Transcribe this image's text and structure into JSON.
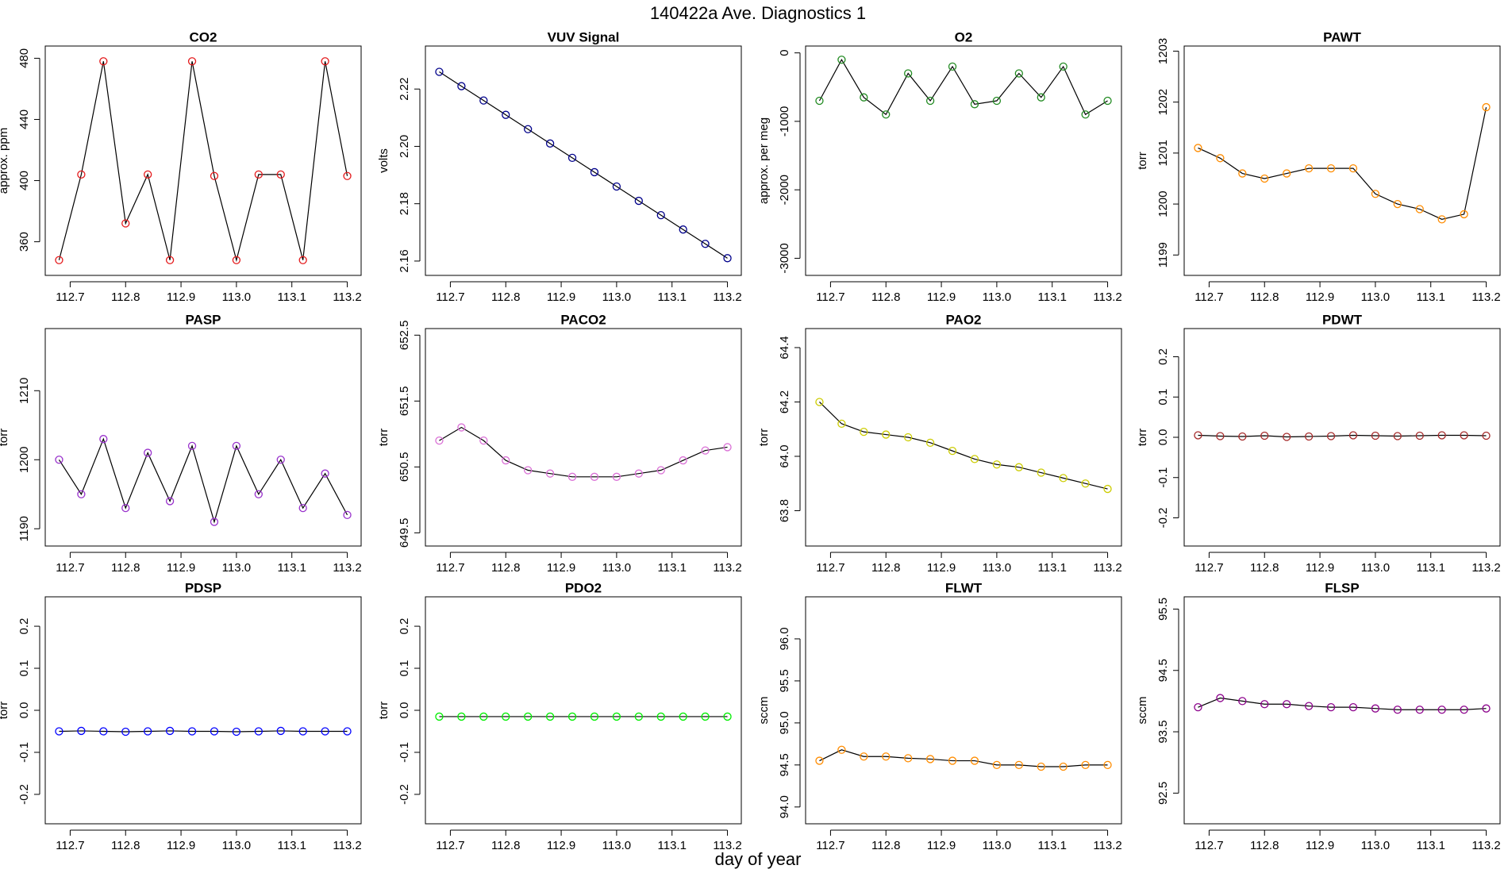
{
  "title": "140422a   Ave. Diagnostics 1",
  "xlabel": "day of year",
  "chart_data": [
    {
      "type": "scatter",
      "title": "CO2",
      "ylabel": "approx. ppm",
      "color": "#e41a1c",
      "line_color": "#000000",
      "x": [
        112.68,
        112.72,
        112.76,
        112.8,
        112.84,
        112.88,
        112.92,
        112.96,
        113.0,
        113.04,
        113.08,
        113.12,
        113.16,
        113.2
      ],
      "values": [
        348,
        404,
        478,
        372,
        404,
        348,
        478,
        403,
        348,
        404,
        404,
        348,
        478,
        403
      ],
      "xlim": [
        112.655,
        113.225
      ],
      "xticks": [
        112.7,
        112.8,
        112.9,
        {
          "value": 113,
          "label": "113.0"
        },
        113.1,
        113.2
      ],
      "ylim": [
        338,
        488
      ],
      "yticks": [
        360,
        400,
        440,
        480
      ]
    },
    {
      "type": "scatter",
      "title": "VUV Signal",
      "ylabel": "volts",
      "color": "#00008b",
      "line_color": "#000000",
      "x": [
        112.68,
        112.72,
        112.76,
        112.8,
        112.84,
        112.88,
        112.92,
        112.96,
        113.0,
        113.04,
        113.08,
        113.12,
        113.16,
        113.2
      ],
      "values": [
        2.226,
        2.221,
        2.216,
        2.211,
        2.206,
        2.201,
        2.196,
        2.191,
        2.186,
        2.181,
        2.176,
        2.171,
        2.166,
        2.161
      ],
      "xlim": [
        112.655,
        113.225
      ],
      "xticks": [
        112.7,
        112.8,
        112.9,
        {
          "value": 113,
          "label": "113.0"
        },
        113.1,
        113.2
      ],
      "ylim": [
        2.155,
        2.235
      ],
      "yticks": [
        2.16,
        2.18,
        {
          "value": 2.2,
          "label": "2.20"
        },
        2.22
      ]
    },
    {
      "type": "scatter",
      "title": "O2",
      "ylabel": "approx. per meg",
      "color": "#228b22",
      "line_color": "#000000",
      "x": [
        112.68,
        112.72,
        112.76,
        112.8,
        112.84,
        112.88,
        112.92,
        112.96,
        113.0,
        113.04,
        113.08,
        113.12,
        113.16,
        113.2
      ],
      "values": [
        -700,
        -100,
        -650,
        -900,
        -300,
        -700,
        -200,
        -750,
        -700,
        -300,
        -650,
        -200,
        -900,
        -700
      ],
      "xlim": [
        112.655,
        113.225
      ],
      "xticks": [
        112.7,
        112.8,
        112.9,
        {
          "value": 113,
          "label": "113.0"
        },
        113.1,
        113.2
      ],
      "ylim": [
        -3250,
        100
      ],
      "yticks": [
        -3000,
        -2000,
        -1000,
        0
      ]
    },
    {
      "type": "scatter",
      "title": "PAWT",
      "ylabel": "torr",
      "color": "#ff8c00",
      "line_color": "#000000",
      "x": [
        112.68,
        112.72,
        112.76,
        112.8,
        112.84,
        112.88,
        112.92,
        112.96,
        113.0,
        113.04,
        113.08,
        113.12,
        113.16,
        113.2
      ],
      "values": [
        1201.1,
        1200.9,
        1200.6,
        1200.5,
        1200.6,
        1200.7,
        1200.7,
        1200.7,
        1200.2,
        1200.0,
        1199.9,
        1199.7,
        1199.8,
        1201.9
      ],
      "xlim": [
        112.655,
        113.225
      ],
      "xticks": [
        112.7,
        112.8,
        112.9,
        {
          "value": 113,
          "label": "113.0"
        },
        113.1,
        113.2
      ],
      "ylim": [
        1198.6,
        1203.1
      ],
      "yticks": [
        1199,
        1200,
        1201,
        1202,
        1203
      ]
    },
    {
      "type": "scatter",
      "title": "PASP",
      "ylabel": "torr",
      "color": "#9932cc",
      "line_color": "#000000",
      "x": [
        112.68,
        112.72,
        112.76,
        112.8,
        112.84,
        112.88,
        112.92,
        112.96,
        113.0,
        113.04,
        113.08,
        113.12,
        113.16,
        113.2
      ],
      "values": [
        1200,
        1195,
        1203,
        1193,
        1201,
        1194,
        1202,
        1191,
        1202,
        1195,
        1200,
        1193,
        1198,
        1192
      ],
      "xlim": [
        112.655,
        113.225
      ],
      "xticks": [
        112.7,
        112.8,
        112.9,
        {
          "value": 113,
          "label": "113.0"
        },
        113.1,
        113.2
      ],
      "ylim": [
        1187.5,
        1219
      ],
      "yticks": [
        1190,
        1200,
        1210
      ]
    },
    {
      "type": "scatter",
      "title": "PACO2",
      "ylabel": "torr",
      "color": "#da70d6",
      "line_color": "#000000",
      "x": [
        112.68,
        112.72,
        112.76,
        112.8,
        112.84,
        112.88,
        112.92,
        112.96,
        113.0,
        113.04,
        113.08,
        113.12,
        113.16,
        113.2
      ],
      "values": [
        650.9,
        651.1,
        650.9,
        650.6,
        650.45,
        650.4,
        650.35,
        650.35,
        650.35,
        650.4,
        650.45,
        650.6,
        650.75,
        650.8
      ],
      "xlim": [
        112.655,
        113.225
      ],
      "xticks": [
        112.7,
        112.8,
        112.9,
        {
          "value": 113,
          "label": "113.0"
        },
        113.1,
        113.2
      ],
      "ylim": [
        649.3,
        652.6
      ],
      "yticks": [
        649.5,
        650.5,
        651.5,
        652.5
      ]
    },
    {
      "type": "scatter",
      "title": "PAO2",
      "ylabel": "torr",
      "color": "#cccc00",
      "line_color": "#000000",
      "x": [
        112.68,
        112.72,
        112.76,
        112.8,
        112.84,
        112.88,
        112.92,
        112.96,
        113.0,
        113.04,
        113.08,
        113.12,
        113.16,
        113.2
      ],
      "values": [
        64.2,
        64.12,
        64.09,
        64.08,
        64.07,
        64.05,
        64.02,
        63.99,
        63.97,
        63.96,
        63.94,
        63.92,
        63.9,
        63.88
      ],
      "xlim": [
        112.655,
        113.225
      ],
      "xticks": [
        112.7,
        112.8,
        112.9,
        {
          "value": 113,
          "label": "113.0"
        },
        113.1,
        113.2
      ],
      "ylim": [
        63.67,
        64.47
      ],
      "yticks": [
        63.8,
        {
          "value": 64,
          "label": "64.0"
        },
        64.2,
        64.4
      ]
    },
    {
      "type": "scatter",
      "title": "PDWT",
      "ylabel": "torr",
      "color": "#a52a2a",
      "line_color": "#000000",
      "x": [
        112.68,
        112.72,
        112.76,
        112.8,
        112.84,
        112.88,
        112.92,
        112.96,
        113.0,
        113.04,
        113.08,
        113.12,
        113.16,
        113.2
      ],
      "values": [
        0.005,
        0.003,
        0.002,
        0.004,
        0.001,
        0.002,
        0.003,
        0.005,
        0.004,
        0.003,
        0.004,
        0.005,
        0.005,
        0.004
      ],
      "xlim": [
        112.655,
        113.225
      ],
      "xticks": [
        112.7,
        112.8,
        112.9,
        {
          "value": 113,
          "label": "113.0"
        },
        113.1,
        113.2
      ],
      "ylim": [
        -0.27,
        0.27
      ],
      "yticks": [
        -0.2,
        -0.1,
        {
          "value": 0,
          "label": "0.0"
        },
        0.1,
        0.2
      ]
    },
    {
      "type": "scatter",
      "title": "PDSP",
      "ylabel": "torr",
      "color": "#0000ff",
      "line_color": "#000000",
      "x": [
        112.68,
        112.72,
        112.76,
        112.8,
        112.84,
        112.88,
        112.92,
        112.96,
        113.0,
        113.04,
        113.08,
        113.12,
        113.16,
        113.2
      ],
      "values": [
        -0.05,
        -0.049,
        -0.05,
        -0.051,
        -0.05,
        -0.049,
        -0.05,
        -0.05,
        -0.051,
        -0.05,
        -0.049,
        -0.05,
        -0.05,
        -0.05
      ],
      "xlim": [
        112.655,
        113.225
      ],
      "xticks": [
        112.7,
        112.8,
        112.9,
        {
          "value": 113,
          "label": "113.0"
        },
        113.1,
        113.2
      ],
      "ylim": [
        -0.27,
        0.27
      ],
      "yticks": [
        -0.2,
        -0.1,
        {
          "value": 0,
          "label": "0.0"
        },
        0.1,
        0.2
      ]
    },
    {
      "type": "scatter",
      "title": "PDO2",
      "ylabel": "torr",
      "color": "#00ee00",
      "line_color": "#000000",
      "x": [
        112.68,
        112.72,
        112.76,
        112.8,
        112.84,
        112.88,
        112.92,
        112.96,
        113.0,
        113.04,
        113.08,
        113.12,
        113.16,
        113.2
      ],
      "values": [
        -0.015,
        -0.015,
        -0.015,
        -0.015,
        -0.015,
        -0.015,
        -0.015,
        -0.015,
        -0.015,
        -0.015,
        -0.015,
        -0.015,
        -0.015,
        -0.015
      ],
      "xlim": [
        112.655,
        113.225
      ],
      "xticks": [
        112.7,
        112.8,
        112.9,
        {
          "value": 113,
          "label": "113.0"
        },
        113.1,
        113.2
      ],
      "ylim": [
        -0.27,
        0.27
      ],
      "yticks": [
        -0.2,
        -0.1,
        {
          "value": 0,
          "label": "0.0"
        },
        0.1,
        0.2
      ]
    },
    {
      "type": "scatter",
      "title": "FLWT",
      "ylabel": "sccm",
      "color": "#ff8c00",
      "line_color": "#000000",
      "x": [
        112.68,
        112.72,
        112.76,
        112.8,
        112.84,
        112.88,
        112.92,
        112.96,
        113.0,
        113.04,
        113.08,
        113.12,
        113.16,
        113.2
      ],
      "values": [
        94.55,
        94.68,
        94.6,
        94.6,
        94.58,
        94.57,
        94.55,
        94.55,
        94.5,
        94.5,
        94.48,
        94.48,
        94.5,
        94.5
      ],
      "xlim": [
        112.655,
        113.225
      ],
      "xticks": [
        112.7,
        112.8,
        112.9,
        {
          "value": 113,
          "label": "113.0"
        },
        113.1,
        113.2
      ],
      "ylim": [
        93.8,
        96.5
      ],
      "yticks": [
        {
          "value": 94,
          "label": "94.0"
        },
        94.5,
        {
          "value": 95,
          "label": "95.0"
        },
        95.5,
        {
          "value": 96,
          "label": "96.0"
        }
      ]
    },
    {
      "type": "scatter",
      "title": "FLSP",
      "ylabel": "sccm",
      "color": "#8b008b",
      "line_color": "#000000",
      "x": [
        112.68,
        112.72,
        112.76,
        112.8,
        112.84,
        112.88,
        112.92,
        112.96,
        113.0,
        113.04,
        113.08,
        113.12,
        113.16,
        113.2
      ],
      "values": [
        93.9,
        94.05,
        94.0,
        93.95,
        93.95,
        93.92,
        93.9,
        93.9,
        93.88,
        93.86,
        93.86,
        93.86,
        93.86,
        93.88
      ],
      "xlim": [
        112.655,
        113.225
      ],
      "xticks": [
        112.7,
        112.8,
        112.9,
        {
          "value": 113,
          "label": "113.0"
        },
        113.1,
        113.2
      ],
      "ylim": [
        92.0,
        95.7
      ],
      "yticks": [
        92.5,
        93.5,
        94.5,
        95.5
      ]
    }
  ]
}
